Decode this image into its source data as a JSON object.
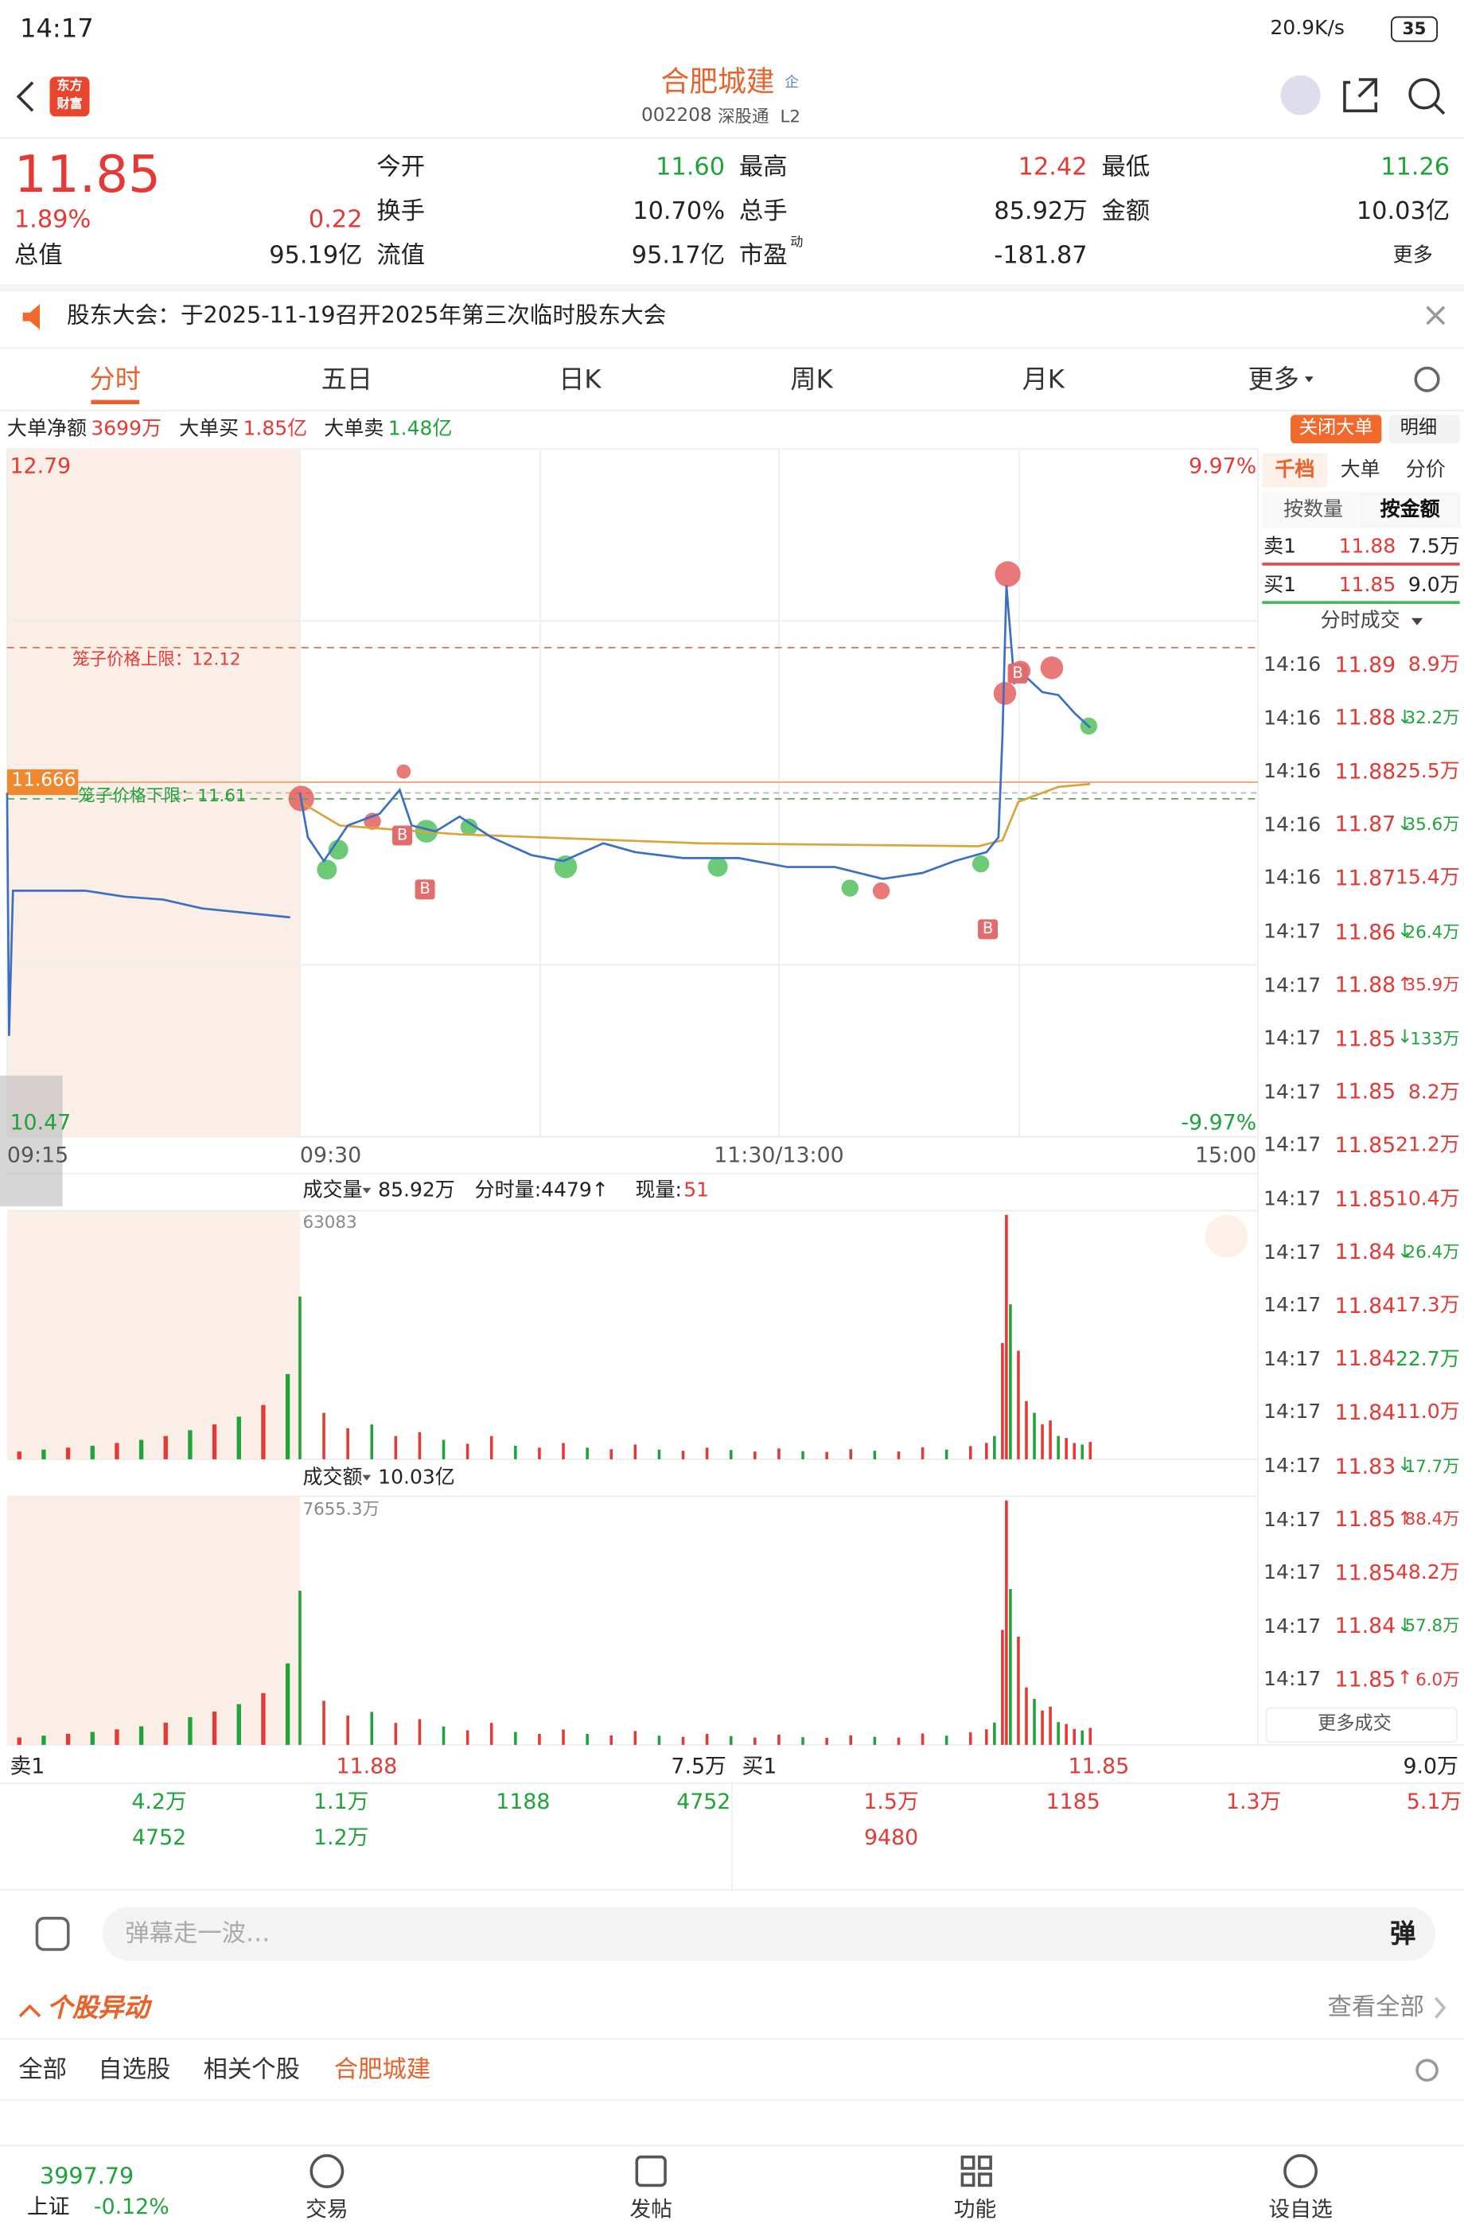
{
  "status_bar": {
    "time": "14:17",
    "net_speed": "20.9K/s",
    "battery": "35"
  },
  "header": {
    "logo": [
      "东方",
      "财富"
    ],
    "title": "合肥城建",
    "badge": "企",
    "code": "002208",
    "market_tag": "深股通",
    "level_tag": "L2"
  },
  "quote": {
    "price": "11.85",
    "change_pct": "1.89%",
    "change": "0.22",
    "fields": [
      {
        "label": "今开",
        "value": "11.60",
        "color": "green"
      },
      {
        "label": "最高",
        "value": "12.42",
        "color": "red"
      },
      {
        "label": "最低",
        "value": "11.26",
        "color": "green"
      },
      {
        "label": "换手",
        "value": "10.70%"
      },
      {
        "label": "总手",
        "value": "85.92万"
      },
      {
        "label": "金额",
        "value": "10.03亿"
      },
      {
        "label": "总值",
        "value": "95.19亿"
      },
      {
        "label": "流值",
        "value": "95.17亿"
      },
      {
        "label": "市盈",
        "sup": "动",
        "value": "-181.87"
      }
    ],
    "more": "更多"
  },
  "notice": "股东大会：于2025-11-19召开2025年第三次临时股东大会",
  "tabs": [
    "分时",
    "五日",
    "日K",
    "周K",
    "月K",
    "更多"
  ],
  "active_tab": 0,
  "big_order": {
    "items": [
      {
        "label": "大单净额",
        "value": "3699万",
        "color": "red"
      },
      {
        "label": "大单买",
        "value": "1.85亿",
        "color": "red"
      },
      {
        "label": "大单卖",
        "value": "1.48亿",
        "color": "green"
      }
    ],
    "close_button": "关闭大单",
    "detail_button": "明细"
  },
  "chart": {
    "ylim": [
      10.47,
      12.79
    ],
    "xlim": [
      0,
      240
    ],
    "pct_top": "9.97%",
    "pct_bottom": "-9.97%",
    "price_tag": 11.666,
    "cage_upper": {
      "label": "笼子价格上限：12.12",
      "value": 12.12
    },
    "cage_lower": {
      "label": "笼子价格下限：11.61",
      "value": 11.61
    },
    "x_labels": [
      "09:15",
      "09:30",
      "11:30/13:00",
      "15:00"
    ],
    "premarket": {
      "xlim": [
        0,
        15
      ],
      "x": [
        0,
        0.1,
        0.3,
        4,
        6,
        8,
        10,
        14.5
      ],
      "price": [
        11.63,
        10.81,
        11.3,
        11.3,
        11.28,
        11.27,
        11.24,
        11.21
      ]
    },
    "x": [
      0,
      2,
      6,
      12,
      20,
      25,
      28,
      34,
      40,
      48,
      58,
      66,
      76,
      84,
      96,
      110,
      122,
      134,
      146,
      156,
      164,
      172,
      175,
      176,
      177,
      179,
      182,
      186,
      190,
      194,
      198
    ],
    "price": [
      11.63,
      11.48,
      11.4,
      11.52,
      11.56,
      11.64,
      11.52,
      11.5,
      11.55,
      11.48,
      11.42,
      11.4,
      11.46,
      11.43,
      11.41,
      11.41,
      11.38,
      11.38,
      11.34,
      11.36,
      11.4,
      11.43,
      11.48,
      11.82,
      12.33,
      12.0,
      12.02,
      11.97,
      11.96,
      11.9,
      11.85
    ],
    "avg_x": [
      0,
      10,
      40,
      100,
      170,
      176,
      180,
      190,
      198
    ],
    "avg": [
      11.6,
      11.52,
      11.49,
      11.46,
      11.45,
      11.47,
      11.6,
      11.65,
      11.66
    ],
    "markers": [
      "B",
      "B",
      "B",
      "B"
    ]
  },
  "volume": {
    "title": "成交量",
    "total": "85.92万",
    "minute_label": "分时量:4479↑",
    "current_label": "现量:",
    "current": "51",
    "ylim": [
      0,
      63083
    ],
    "pre_values": [
      2000,
      2500,
      3000,
      3500,
      4200,
      5000,
      6000,
      7500,
      9000,
      11000,
      14000,
      22000
    ],
    "x": [
      0,
      6,
      12,
      18,
      24,
      30,
      36,
      42,
      48,
      54,
      60,
      66,
      72,
      78,
      84,
      90,
      96,
      102,
      108,
      114,
      120,
      126,
      132,
      138,
      144,
      150,
      156,
      162,
      168,
      172,
      174,
      176,
      177,
      178,
      180,
      182,
      184,
      186,
      188,
      190,
      192,
      194,
      196,
      198
    ],
    "values": [
      42000,
      12000,
      8000,
      9000,
      6000,
      7000,
      5000,
      4000,
      6000,
      3500,
      3000,
      4200,
      3000,
      2600,
      3800,
      2500,
      2200,
      3000,
      2400,
      2000,
      2800,
      2100,
      1900,
      2600,
      2200,
      2000,
      3100,
      2500,
      3400,
      4200,
      6000,
      30000,
      63083,
      40000,
      28000,
      15000,
      12000,
      9000,
      10000,
      6000,
      5500,
      4200,
      3800,
      4479
    ]
  },
  "amount": {
    "title": "成交额",
    "total": "10.03亿",
    "ylim": [
      0,
      7655.3
    ],
    "ylim_label": "7655.3万",
    "pre_values": [
      232,
      290,
      348,
      406,
      487,
      580,
      696,
      870,
      1044,
      1276,
      1624,
      2552
    ],
    "values": [
      4830,
      1380,
      920,
      1035,
      690,
      805,
      575,
      460,
      690,
      403,
      345,
      483,
      345,
      299,
      437,
      288,
      253,
      345,
      276,
      230,
      322,
      242,
      219,
      299,
      253,
      230,
      357,
      288,
      391,
      487,
      700,
      3600,
      7655.3,
      4880,
      3390,
      1800,
      1440,
      1075,
      1195,
      715,
      655,
      500,
      451,
      531
    ]
  },
  "depth_panel": {
    "tabs": [
      "千档",
      "大单",
      "分价"
    ],
    "subtabs": [
      "按数量",
      "按金额"
    ],
    "sell1": {
      "label": "卖1",
      "price": "11.88",
      "volume": "7.5万"
    },
    "buy1": {
      "label": "买1",
      "price": "11.85",
      "volume": "9.0万"
    },
    "trades_title": "分时成交",
    "trades": [
      {
        "time": "14:16",
        "price": "11.89",
        "volume": "8.9万",
        "color": "red"
      },
      {
        "time": "14:16",
        "price": "11.88",
        "arrow": "↓",
        "volume": "32.2万",
        "color": "green"
      },
      {
        "time": "14:16",
        "price": "11.88",
        "volume": "25.5万",
        "color": "red"
      },
      {
        "time": "14:16",
        "price": "11.87",
        "arrow": "↓",
        "volume": "35.6万",
        "color": "green"
      },
      {
        "time": "14:16",
        "price": "11.87",
        "volume": "15.4万",
        "color": "red"
      },
      {
        "time": "14:17",
        "price": "11.86",
        "arrow": "↓",
        "volume": "26.4万",
        "color": "green"
      },
      {
        "time": "14:17",
        "price": "11.88",
        "arrow": "↑",
        "volume": "35.9万",
        "color": "red"
      },
      {
        "time": "14:17",
        "price": "11.85",
        "arrow": "↓",
        "volume": "133万",
        "color": "green"
      },
      {
        "time": "14:17",
        "price": "11.85",
        "volume": "8.2万",
        "color": "red"
      },
      {
        "time": "14:17",
        "price": "11.85",
        "volume": "21.2万",
        "color": "red"
      },
      {
        "time": "14:17",
        "price": "11.85",
        "volume": "10.4万",
        "color": "red"
      },
      {
        "time": "14:17",
        "price": "11.84",
        "arrow": "↓",
        "volume": "26.4万",
        "color": "green"
      },
      {
        "time": "14:17",
        "price": "11.84",
        "volume": "17.3万",
        "color": "red"
      },
      {
        "time": "14:17",
        "price": "11.84",
        "volume": "22.7万",
        "color": "green"
      },
      {
        "time": "14:17",
        "price": "11.84",
        "volume": "11.0万",
        "color": "red"
      },
      {
        "time": "14:17",
        "price": "11.83",
        "arrow": "↓",
        "volume": "17.7万",
        "color": "green"
      },
      {
        "time": "14:17",
        "price": "11.85",
        "arrow": "↑",
        "volume": "88.4万",
        "color": "red"
      },
      {
        "time": "14:17",
        "price": "11.85",
        "volume": "48.2万",
        "color": "red"
      },
      {
        "time": "14:17",
        "price": "11.84",
        "arrow": "↓",
        "volume": "57.8万",
        "color": "green"
      },
      {
        "time": "14:17",
        "price": "11.85",
        "arrow": "↑",
        "volume": "6.0万",
        "color": "red"
      }
    ],
    "more": "更多成交"
  },
  "order_book": {
    "sell": {
      "label": "卖1",
      "price": "11.88",
      "volume": "7.5万",
      "rows": [
        [
          "4.2万",
          "1.1万",
          "1188",
          "4752"
        ],
        [
          "4752",
          "1.2万"
        ]
      ]
    },
    "buy": {
      "label": "买1",
      "price": "11.85",
      "volume": "9.0万",
      "rows": [
        [
          "1.5万",
          "1185",
          "1.3万",
          "5.1万"
        ],
        [
          "9480"
        ]
      ]
    }
  },
  "comment": {
    "placeholder": "弹幕走一波…",
    "button": "弹"
  },
  "movers": {
    "title": "个股异动",
    "view_all": "查看全部",
    "filters": [
      "全部",
      "自选股",
      "相关个股",
      "合肥城建"
    ],
    "active_filter": 3
  },
  "bottom_nav": {
    "index": {
      "value": "3997.79",
      "name": "上证",
      "change": "-0.12%"
    },
    "items": [
      "交易",
      "发帖",
      "功能",
      "设自选"
    ]
  }
}
